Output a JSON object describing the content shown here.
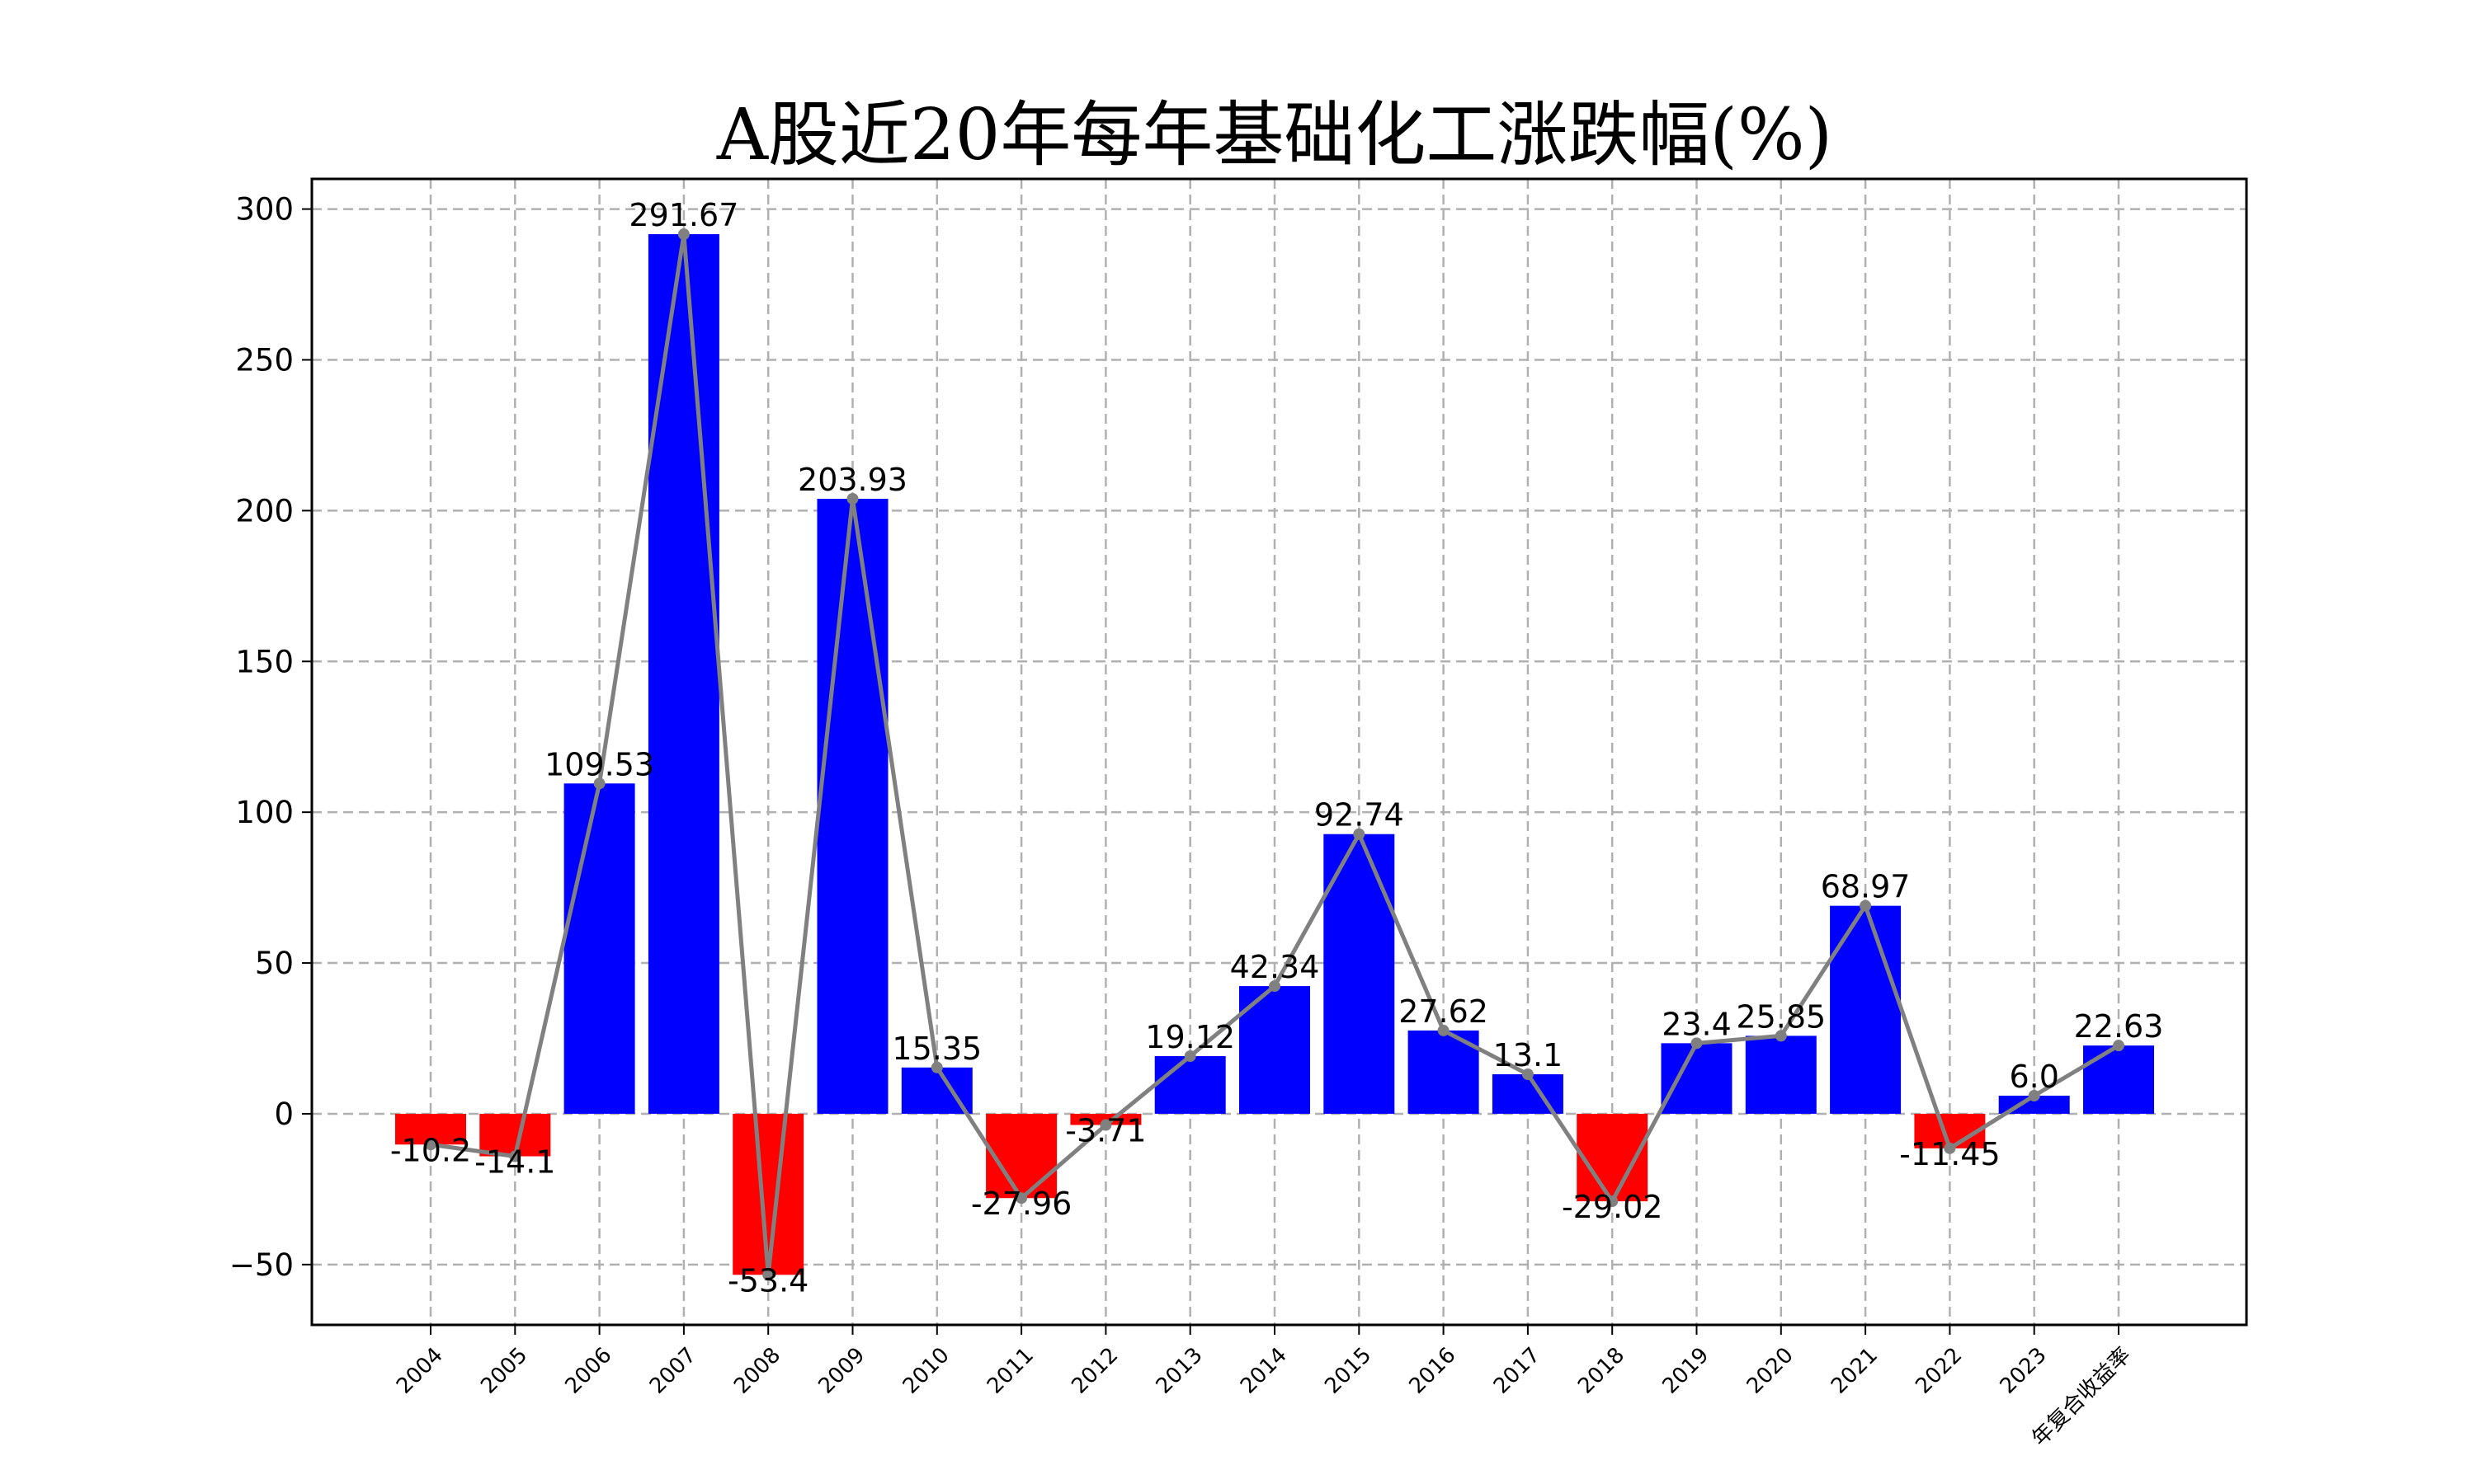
{
  "chart_data": {
    "type": "bar",
    "title": "A股近20年每年基础化工涨跌幅(%)",
    "xlabel": "",
    "ylabel": "",
    "categories": [
      "2004",
      "2005",
      "2006",
      "2007",
      "2008",
      "2009",
      "2010",
      "2011",
      "2012",
      "2013",
      "2014",
      "2015",
      "2016",
      "2017",
      "2018",
      "2019",
      "2020",
      "2021",
      "2022",
      "2023",
      "年复合收益率"
    ],
    "values": [
      -10.2,
      -14.1,
      109.53,
      291.67,
      -53.4,
      203.93,
      15.35,
      -27.96,
      -3.71,
      19.12,
      42.34,
      92.74,
      27.62,
      13.1,
      -29.02,
      23.4,
      25.85,
      68.97,
      -11.45,
      6.0,
      22.63
    ],
    "data_labels": [
      "-10.2",
      "-14.1",
      "109.53",
      "291.67",
      "-53.4",
      "203.93",
      "15.35",
      "-27.96",
      "-3.71",
      "19.12",
      "42.34",
      "92.74",
      "27.62",
      "13.1",
      "-29.02",
      "23.4",
      "25.85",
      "68.97",
      "-11.45",
      "6.0",
      "22.63"
    ],
    "overlay_line": {
      "type": "line",
      "values_follow": "values"
    },
    "ylim": [
      -70,
      310
    ],
    "yticks": [
      -50,
      0,
      50,
      100,
      150,
      200,
      250,
      300
    ],
    "ytick_labels": [
      "−50",
      "0",
      "50",
      "100",
      "150",
      "200",
      "250",
      "300"
    ],
    "grid": true,
    "legend": "none",
    "colors": {
      "positive_bar": "#0000ff",
      "negative_bar": "#ff0000",
      "line": "#808080",
      "grid": "#b0b0b0"
    }
  }
}
